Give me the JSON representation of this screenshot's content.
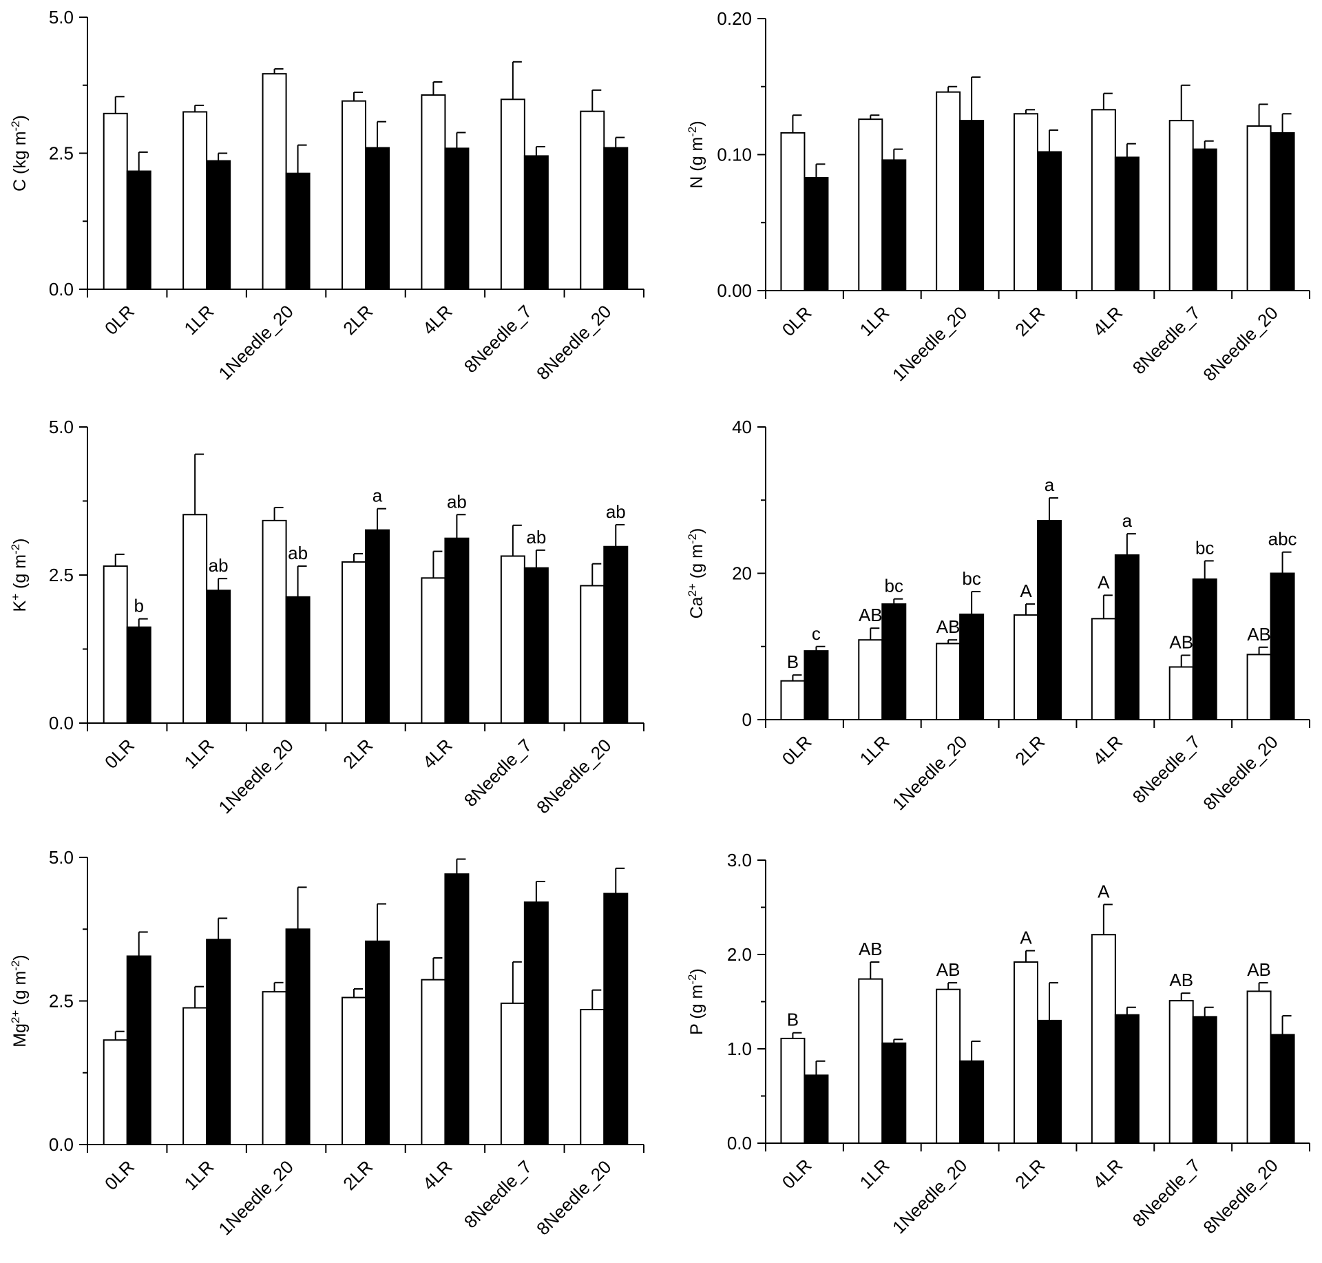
{
  "colors": {
    "open_bar": "#ffffff",
    "filled_bar": "#000000",
    "axis": "#000000"
  },
  "chart_data": [
    {
      "type": "bar",
      "ylabel": {
        "base": "C (kg m",
        "sup": "-2",
        "tail": ")"
      },
      "ylim": [
        0,
        5.0
      ],
      "yticks": [
        "0.0",
        "2.5",
        "5.0"
      ],
      "ytick_values": [
        0,
        2.5,
        5.0
      ],
      "categories": [
        "0LR",
        "1LR",
        "1Needle_20",
        "2LR",
        "4LR",
        "8Needle_7",
        "8Needle_20"
      ],
      "series": [
        {
          "fill": "open",
          "values": [
            3.23,
            3.26,
            3.96,
            3.46,
            3.57,
            3.49,
            3.27
          ],
          "errors": [
            0.31,
            0.12,
            0.09,
            0.16,
            0.24,
            0.69,
            0.39
          ],
          "letters": [
            "",
            "",
            "",
            "",
            "",
            "",
            ""
          ]
        },
        {
          "fill": "filled",
          "values": [
            2.17,
            2.36,
            2.13,
            2.6,
            2.59,
            2.45,
            2.6
          ],
          "errors": [
            0.35,
            0.14,
            0.52,
            0.48,
            0.29,
            0.17,
            0.19
          ],
          "letters": [
            "",
            "",
            "",
            "",
            "",
            "",
            ""
          ]
        }
      ]
    },
    {
      "type": "bar",
      "ylabel": {
        "base": "N (g m",
        "sup": "-2",
        "tail": ")"
      },
      "ylim": [
        0,
        0.2
      ],
      "yticks": [
        "0.00",
        "0.10",
        "0.20"
      ],
      "ytick_values": [
        0,
        0.1,
        0.2
      ],
      "categories": [
        "0LR",
        "1LR",
        "1Needle_20",
        "2LR",
        "4LR",
        "8Needle_7",
        "8Needle_20"
      ],
      "series": [
        {
          "fill": "open",
          "values": [
            0.116,
            0.126,
            0.146,
            0.13,
            0.133,
            0.125,
            0.121
          ],
          "errors": [
            0.013,
            0.003,
            0.004,
            0.003,
            0.012,
            0.026,
            0.016
          ],
          "letters": [
            "",
            "",
            "",
            "",
            "",
            "",
            ""
          ]
        },
        {
          "fill": "filled",
          "values": [
            0.083,
            0.096,
            0.125,
            0.102,
            0.098,
            0.104,
            0.116
          ],
          "errors": [
            0.01,
            0.008,
            0.032,
            0.016,
            0.01,
            0.006,
            0.014
          ],
          "letters": [
            "",
            "",
            "",
            "",
            "",
            "",
            ""
          ]
        }
      ]
    },
    {
      "type": "bar",
      "ylabel": {
        "base": "K",
        "sup": "+",
        "tail": " (g m",
        "sup2": "-2",
        "tail2": ")"
      },
      "ylim": [
        0,
        5.0
      ],
      "yticks": [
        "0.0",
        "2.5",
        "5.0"
      ],
      "ytick_values": [
        0,
        2.5,
        5.0
      ],
      "categories": [
        "0LR",
        "1LR",
        "1Needle_20",
        "2LR",
        "4LR",
        "8Needle_7",
        "8Needle_20"
      ],
      "series": [
        {
          "fill": "open",
          "values": [
            2.65,
            3.52,
            3.42,
            2.72,
            2.45,
            2.82,
            2.32
          ],
          "errors": [
            0.2,
            1.02,
            0.22,
            0.14,
            0.45,
            0.52,
            0.37
          ],
          "letters": [
            "",
            "",
            "",
            "",
            "",
            "",
            ""
          ]
        },
        {
          "fill": "filled",
          "values": [
            1.62,
            2.24,
            2.13,
            3.26,
            3.12,
            2.62,
            2.98
          ],
          "errors": [
            0.14,
            0.2,
            0.52,
            0.36,
            0.4,
            0.3,
            0.37
          ],
          "letters": [
            "b",
            "ab",
            "ab",
            "a",
            "ab",
            "ab",
            "ab"
          ]
        }
      ]
    },
    {
      "type": "bar",
      "ylabel": {
        "base": "Ca",
        "sup": "2+",
        "tail": " (g m",
        "sup2": "-2",
        "tail2": ")"
      },
      "ylim": [
        0,
        40
      ],
      "yticks": [
        "0",
        "20",
        "40"
      ],
      "ytick_values": [
        0,
        20,
        40
      ],
      "categories": [
        "0LR",
        "1LR",
        "1Needle_20",
        "2LR",
        "4LR",
        "8Needle_7",
        "8Needle_20"
      ],
      "series": [
        {
          "fill": "open",
          "values": [
            5.3,
            10.9,
            10.4,
            14.3,
            13.8,
            7.2,
            8.9
          ],
          "errors": [
            0.8,
            1.6,
            0.5,
            1.5,
            3.2,
            1.6,
            1.0
          ],
          "letters": [
            "B",
            "AB",
            "AB",
            "A",
            "A",
            "AB",
            "AB"
          ]
        },
        {
          "fill": "filled",
          "values": [
            9.4,
            15.8,
            14.4,
            27.2,
            22.5,
            19.2,
            20.0
          ],
          "errors": [
            0.6,
            0.7,
            3.1,
            3.1,
            2.9,
            2.5,
            2.9
          ],
          "letters": [
            "c",
            "bc",
            "bc",
            "a",
            "a",
            "bc",
            "abc"
          ]
        }
      ]
    },
    {
      "type": "bar",
      "ylabel": {
        "base": "Mg",
        "sup": "2+",
        "tail": " (g m",
        "sup2": "-2",
        "tail2": ")"
      },
      "ylim": [
        0,
        5.0
      ],
      "yticks": [
        "0.0",
        "2.5",
        "5.0"
      ],
      "ytick_values": [
        0,
        2.5,
        5.0
      ],
      "categories": [
        "0LR",
        "1LR",
        "1Needle_20",
        "2LR",
        "4LR",
        "8Needle_7",
        "8Needle_20"
      ],
      "series": [
        {
          "fill": "open",
          "values": [
            1.82,
            2.38,
            2.66,
            2.56,
            2.87,
            2.46,
            2.35
          ],
          "errors": [
            0.15,
            0.37,
            0.16,
            0.15,
            0.38,
            0.72,
            0.34
          ],
          "letters": [
            "",
            "",
            "",
            "",
            "",
            "",
            ""
          ]
        },
        {
          "fill": "filled",
          "values": [
            3.28,
            3.57,
            3.75,
            3.54,
            4.71,
            4.22,
            4.37
          ],
          "errors": [
            0.42,
            0.37,
            0.73,
            0.65,
            0.26,
            0.36,
            0.44
          ],
          "letters": [
            "",
            "",
            "",
            "",
            "",
            "",
            ""
          ]
        }
      ]
    },
    {
      "type": "bar",
      "ylabel": {
        "base": "P (g m",
        "sup": "-2",
        "tail": ")"
      },
      "ylim": [
        0,
        3.0
      ],
      "yticks": [
        "0.0",
        "1.0",
        "2.0",
        "3.0"
      ],
      "ytick_values": [
        0,
        1.0,
        2.0,
        3.0
      ],
      "categories": [
        "0LR",
        "1LR",
        "1Needle_20",
        "2LR",
        "4LR",
        "8Needle_7",
        "8Needle_20"
      ],
      "series": [
        {
          "fill": "open",
          "values": [
            1.11,
            1.74,
            1.63,
            1.92,
            2.21,
            1.51,
            1.61
          ],
          "errors": [
            0.06,
            0.18,
            0.07,
            0.12,
            0.32,
            0.08,
            0.09
          ],
          "letters": [
            "B",
            "AB",
            "AB",
            "A",
            "A",
            "AB",
            "AB"
          ]
        },
        {
          "fill": "filled",
          "values": [
            0.72,
            1.06,
            0.87,
            1.3,
            1.36,
            1.34,
            1.15
          ],
          "errors": [
            0.15,
            0.04,
            0.21,
            0.4,
            0.08,
            0.1,
            0.2
          ],
          "letters": [
            "",
            "",
            "",
            "",
            "",
            "",
            ""
          ]
        }
      ]
    }
  ]
}
